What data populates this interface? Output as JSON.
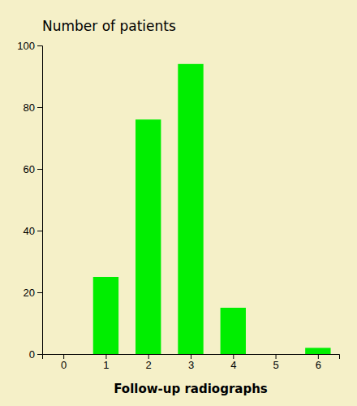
{
  "chart_data": {
    "type": "bar",
    "title": "Number of patients",
    "xlabel": "Follow-up radiographs",
    "x": [
      0,
      1,
      2,
      3,
      4,
      5,
      6
    ],
    "values": [
      0,
      25,
      76,
      94,
      15,
      0,
      2
    ],
    "color": "#00ee00",
    "xlim": [
      -0.5,
      6.5
    ],
    "xticks": [
      0,
      1,
      2,
      3,
      4,
      5,
      6
    ],
    "ylim": [
      0,
      100
    ],
    "yticks": [
      0,
      20,
      40,
      60,
      80,
      100
    ],
    "grid": false
  }
}
